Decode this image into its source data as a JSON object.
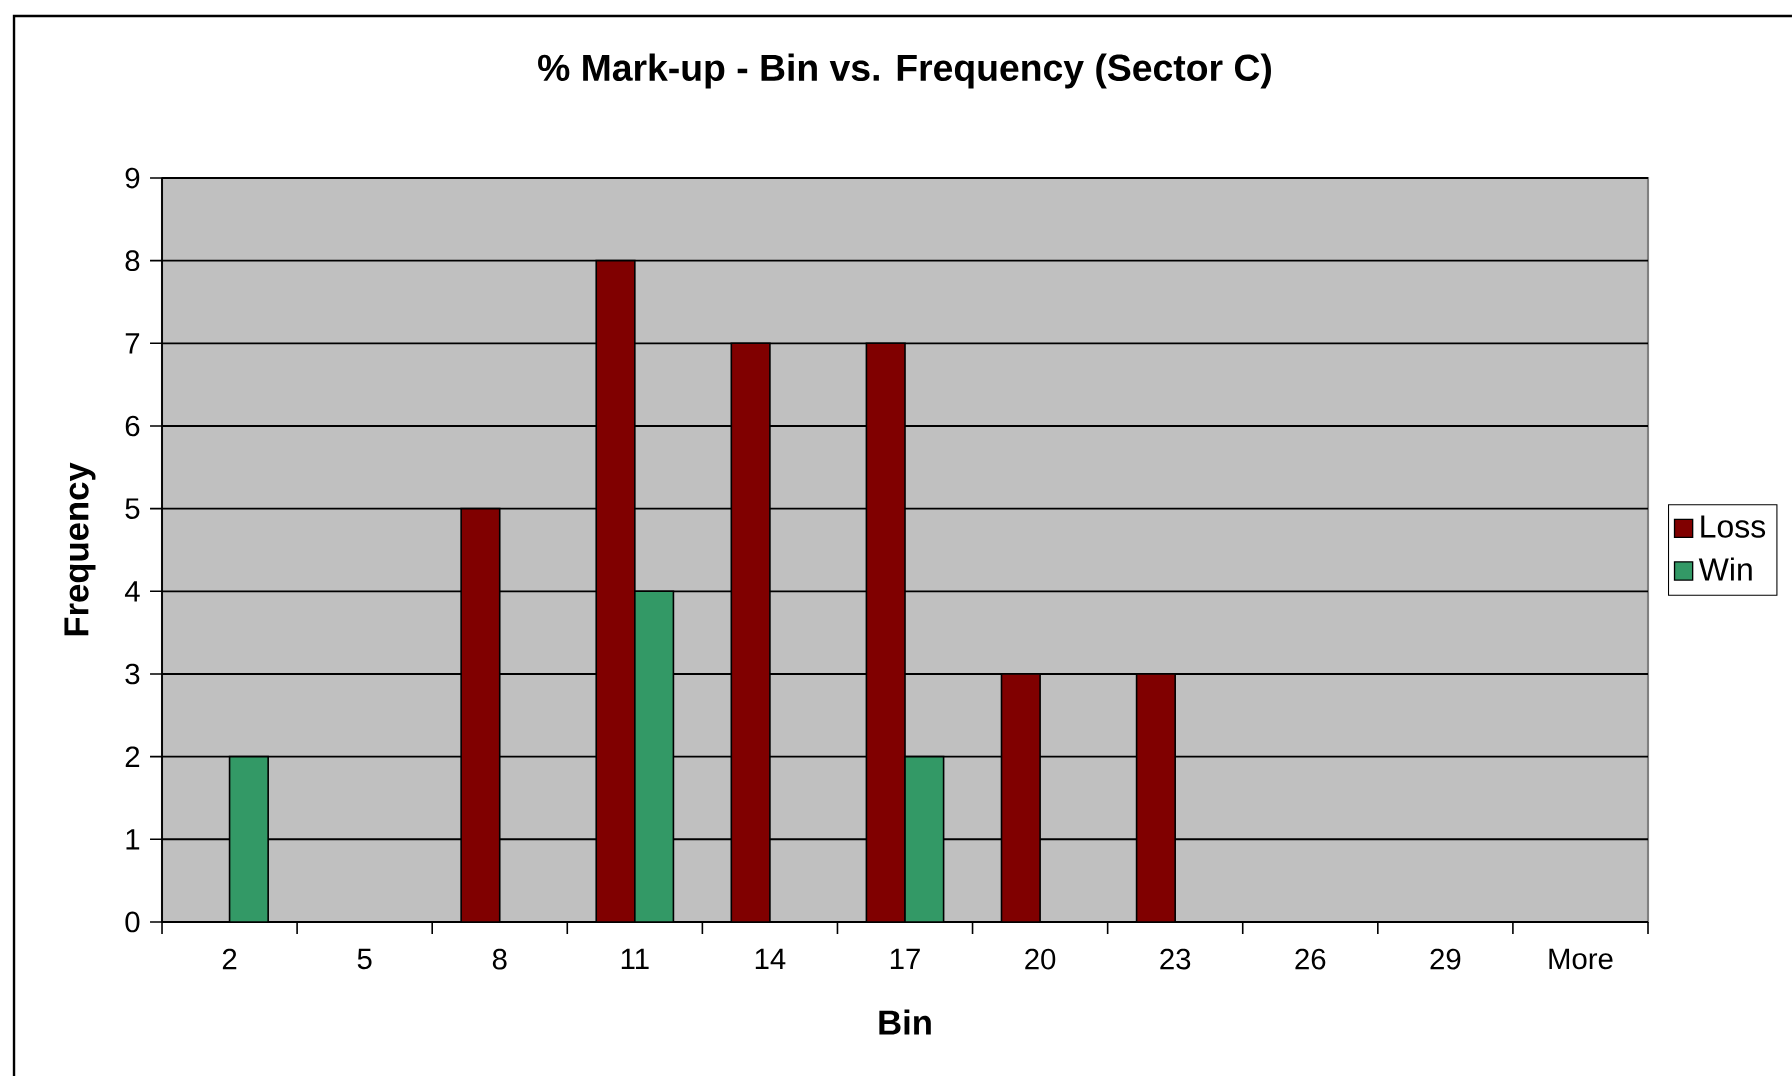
{
  "chart_data": {
    "type": "bar",
    "title": "% Mark-up - Bin vs. Frequency (Sector C)",
    "xlabel": "Bin",
    "ylabel": "Frequency",
    "categories": [
      "2",
      "5",
      "8",
      "11",
      "14",
      "17",
      "20",
      "23",
      "26",
      "29",
      "More"
    ],
    "series": [
      {
        "name": "Loss",
        "color": "#800000",
        "values": [
          0,
          0,
          5,
          8,
          7,
          7,
          3,
          3,
          0,
          0,
          0
        ]
      },
      {
        "name": "Win",
        "color": "#339966",
        "values": [
          2,
          0,
          0,
          4,
          0,
          2,
          0,
          0,
          0,
          0,
          0
        ]
      }
    ],
    "ylim": [
      0,
      9
    ],
    "yticks": [
      0,
      1,
      2,
      3,
      4,
      5,
      6,
      7,
      8,
      9
    ],
    "grid": "y",
    "legend": "right"
  }
}
